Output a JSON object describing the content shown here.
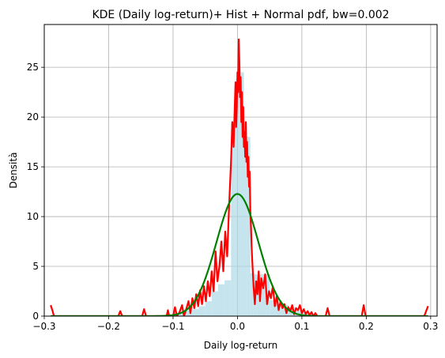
{
  "chart_data": {
    "type": "line",
    "title": "KDE (Daily log-return)+ Hist + Normal pdf, bw=0.002",
    "xlabel": "Daily log-return",
    "ylabel": "Densità",
    "xlim": [
      -0.3,
      0.31
    ],
    "ylim": [
      0,
      29.3
    ],
    "grid": true,
    "x_ticks": [
      -0.3,
      -0.2,
      -0.1,
      0.0,
      0.1,
      0.2,
      0.3
    ],
    "x_tick_labels": [
      "−0.3",
      "−0.2",
      "−0.1",
      "0.0",
      "0.1",
      "0.2",
      "0.3"
    ],
    "y_ticks": [
      0,
      5,
      10,
      15,
      20,
      25
    ],
    "y_tick_labels": [
      "0",
      "5",
      "10",
      "15",
      "20",
      "25"
    ],
    "histogram": {
      "color": "#add8e6",
      "bins": [
        [
          -0.11,
          -0.1,
          0.15
        ],
        [
          -0.1,
          -0.09,
          0.35
        ],
        [
          -0.09,
          -0.08,
          0.45
        ],
        [
          -0.08,
          -0.07,
          0.55
        ],
        [
          -0.07,
          -0.06,
          0.7
        ],
        [
          -0.06,
          -0.05,
          1.0
        ],
        [
          -0.05,
          -0.04,
          1.5
        ],
        [
          -0.04,
          -0.03,
          2.5
        ],
        [
          -0.03,
          -0.02,
          3.2
        ],
        [
          -0.02,
          -0.01,
          3.6
        ],
        [
          -0.01,
          -0.005,
          19.5
        ],
        [
          -0.005,
          0.0,
          20.0
        ],
        [
          0.0,
          0.005,
          23.0
        ],
        [
          0.005,
          0.01,
          24.5
        ],
        [
          0.01,
          0.015,
          19.5
        ],
        [
          0.015,
          0.02,
          18.0
        ],
        [
          0.02,
          0.025,
          4.3
        ],
        [
          0.025,
          0.03,
          4.2
        ],
        [
          0.03,
          0.04,
          4.2
        ],
        [
          0.04,
          0.05,
          4.2
        ],
        [
          0.05,
          0.06,
          1.6
        ],
        [
          0.06,
          0.07,
          1.3
        ],
        [
          0.07,
          0.08,
          1.1
        ],
        [
          0.08,
          0.09,
          0.9
        ],
        [
          0.09,
          0.1,
          0.6
        ],
        [
          0.1,
          0.11,
          0.4
        ],
        [
          0.11,
          0.12,
          0.2
        ]
      ]
    },
    "series": [
      {
        "color": "#ff0000",
        "x": [
          -0.29,
          -0.287,
          -0.285,
          -0.283,
          -0.27,
          -0.2,
          -0.185,
          -0.182,
          -0.179,
          -0.16,
          -0.148,
          -0.145,
          -0.142,
          -0.125,
          -0.11,
          -0.108,
          -0.106,
          -0.1,
          -0.097,
          -0.094,
          -0.09,
          -0.086,
          -0.083,
          -0.08,
          -0.076,
          -0.073,
          -0.07,
          -0.067,
          -0.064,
          -0.061,
          -0.058,
          -0.055,
          -0.052,
          -0.049,
          -0.046,
          -0.043,
          -0.04,
          -0.037,
          -0.034,
          -0.031,
          -0.028,
          -0.025,
          -0.022,
          -0.019,
          -0.016,
          -0.013,
          -0.01,
          -0.008,
          -0.006,
          -0.004,
          -0.003,
          -0.002,
          -0.001,
          0.0,
          0.001,
          0.002,
          0.003,
          0.004,
          0.005,
          0.006,
          0.007,
          0.008,
          0.009,
          0.01,
          0.011,
          0.012,
          0.013,
          0.014,
          0.015,
          0.016,
          0.017,
          0.018,
          0.019,
          0.02,
          0.021,
          0.022,
          0.023,
          0.025,
          0.027,
          0.029,
          0.031,
          0.033,
          0.035,
          0.037,
          0.04,
          0.043,
          0.046,
          0.049,
          0.052,
          0.055,
          0.058,
          0.061,
          0.064,
          0.067,
          0.07,
          0.073,
          0.076,
          0.079,
          0.082,
          0.085,
          0.088,
          0.091,
          0.094,
          0.097,
          0.1,
          0.103,
          0.106,
          0.109,
          0.112,
          0.115,
          0.118,
          0.121,
          0.124,
          0.13,
          0.137,
          0.14,
          0.143,
          0.15,
          0.193,
          0.196,
          0.199,
          0.25,
          0.29,
          0.293,
          0.296
        ],
        "y": [
          1.1,
          0.5,
          0.0,
          0.0,
          0.0,
          0.0,
          0.0,
          0.5,
          0.0,
          0.0,
          0.0,
          0.7,
          0.0,
          0.0,
          0.0,
          0.6,
          0.0,
          0.0,
          0.9,
          0.0,
          0.4,
          1.1,
          0.0,
          0.6,
          1.5,
          0.3,
          1.8,
          0.8,
          2.2,
          1.0,
          2.6,
          1.2,
          3.0,
          1.5,
          3.5,
          2.0,
          4.5,
          2.5,
          6.5,
          3.5,
          5.0,
          7.5,
          4.5,
          8.5,
          6.0,
          11.0,
          15.5,
          19.5,
          17.0,
          21.5,
          23.5,
          19.0,
          21.0,
          24.5,
          22.5,
          27.8,
          25.5,
          22.0,
          24.0,
          19.5,
          22.5,
          18.0,
          21.0,
          17.0,
          18.5,
          16.0,
          19.5,
          15.5,
          17.5,
          14.0,
          16.0,
          13.0,
          14.5,
          10.5,
          9.0,
          7.0,
          5.5,
          3.0,
          1.2,
          3.5,
          2.2,
          4.5,
          1.5,
          3.8,
          2.8,
          4.2,
          1.2,
          2.5,
          1.8,
          3.0,
          1.0,
          2.0,
          0.6,
          1.5,
          0.8,
          1.2,
          0.3,
          0.9,
          0.5,
          1.1,
          0.2,
          0.8,
          0.6,
          1.1,
          0.3,
          0.7,
          0.2,
          0.5,
          0.1,
          0.4,
          0.0,
          0.3,
          0.0,
          0.0,
          0.0,
          0.8,
          0.0,
          0.0,
          0.0,
          1.1,
          0.0,
          0.0,
          0.0,
          0.5,
          1.0
        ]
      },
      {
        "color": "#008000",
        "mean": 0.0,
        "std": 0.0325,
        "x_range": [
          -0.29,
          0.296
        ]
      }
    ]
  }
}
